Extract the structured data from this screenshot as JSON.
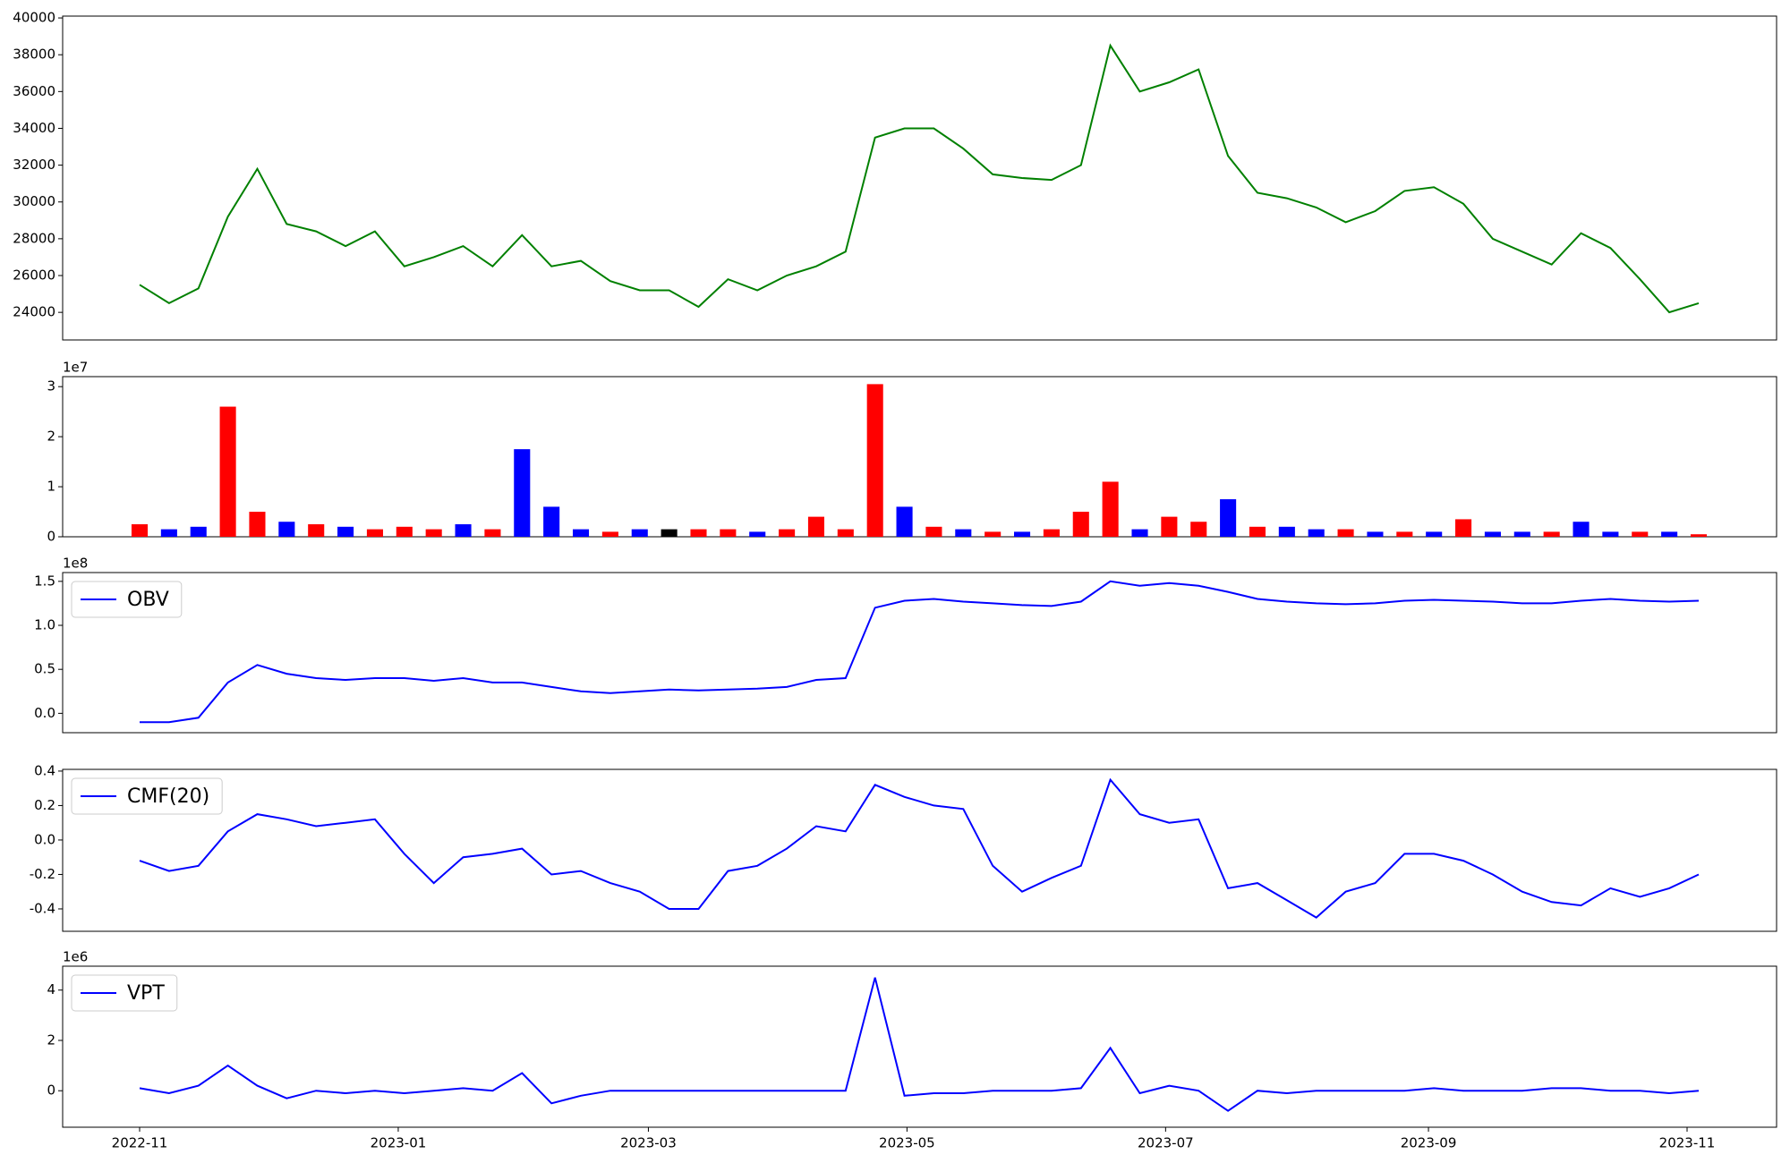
{
  "chart_data": [
    {
      "type": "line",
      "ylim": [
        22500,
        40100
      ],
      "yticks": [
        24000,
        26000,
        28000,
        30000,
        32000,
        34000,
        36000,
        38000,
        40000
      ],
      "series": [
        {
          "color": "#008000",
          "values": [
            25500,
            24500,
            25300,
            29200,
            31800,
            28800,
            28400,
            27600,
            28400,
            26500,
            27000,
            27600,
            26500,
            28200,
            26500,
            26800,
            25700,
            25200,
            25200,
            24300,
            25800,
            25200,
            26000,
            26500,
            27300,
            33500,
            34000,
            34000,
            32900,
            31500,
            31300,
            31200,
            32000,
            38500,
            36000,
            36500,
            37200,
            32500,
            30500,
            30200,
            29700,
            28900,
            29500,
            30600,
            30800,
            29900,
            28000,
            27300,
            26600,
            28300,
            27500,
            25800,
            24000,
            24500
          ]
        }
      ]
    },
    {
      "type": "bar",
      "offset_label": "1e7",
      "ylim": [
        0,
        3.2
      ],
      "yticks": [
        0,
        1,
        2,
        3
      ],
      "values": [
        0.25,
        0.15,
        0.2,
        2.6,
        0.5,
        0.3,
        0.25,
        0.2,
        0.15,
        0.2,
        0.15,
        0.25,
        0.15,
        1.75,
        0.6,
        0.15,
        0.1,
        0.15,
        0.15,
        0.15,
        0.15,
        0.1,
        0.15,
        0.4,
        0.15,
        3.05,
        0.6,
        0.2,
        0.15,
        0.1,
        0.1,
        0.15,
        0.5,
        1.1,
        0.15,
        0.4,
        0.3,
        0.75,
        0.2,
        0.2,
        0.15,
        0.15,
        0.1,
        0.1,
        0.1,
        0.35,
        0.1,
        0.1,
        0.1,
        0.3,
        0.1,
        0.1,
        0.1,
        0.05
      ],
      "colors": [
        "red",
        "blue",
        "blue",
        "red",
        "red",
        "blue",
        "red",
        "blue",
        "red",
        "red",
        "red",
        "blue",
        "red",
        "blue",
        "blue",
        "blue",
        "red",
        "blue",
        "black",
        "red",
        "red",
        "blue",
        "red",
        "red",
        "red",
        "red",
        "blue",
        "red",
        "blue",
        "red",
        "blue",
        "red",
        "red",
        "red",
        "blue",
        "red",
        "red",
        "blue",
        "red",
        "blue",
        "blue",
        "red",
        "blue",
        "red",
        "blue",
        "red",
        "blue",
        "blue",
        "red",
        "blue",
        "blue",
        "red",
        "blue",
        "red"
      ]
    },
    {
      "type": "line",
      "offset_label": "1e8",
      "ylim": [
        -0.22,
        1.6
      ],
      "yticks": [
        {
          "value": 0,
          "label": "0.0"
        },
        0.5,
        {
          "value": 1,
          "label": "1.0"
        },
        1.5
      ],
      "series": [
        {
          "name": "OBV",
          "color": "blue",
          "values": [
            -0.1,
            -0.1,
            -0.05,
            0.35,
            0.55,
            0.45,
            0.4,
            0.38,
            0.4,
            0.4,
            0.37,
            0.4,
            0.35,
            0.35,
            0.3,
            0.25,
            0.23,
            0.25,
            0.27,
            0.26,
            0.27,
            0.28,
            0.3,
            0.38,
            0.4,
            1.2,
            1.28,
            1.3,
            1.27,
            1.25,
            1.23,
            1.22,
            1.27,
            1.5,
            1.45,
            1.48,
            1.45,
            1.38,
            1.3,
            1.27,
            1.25,
            1.24,
            1.25,
            1.28,
            1.29,
            1.28,
            1.27,
            1.25,
            1.25,
            1.28,
            1.3,
            1.28,
            1.27,
            1.28
          ]
        }
      ]
    },
    {
      "type": "line",
      "ylim": [
        -0.53,
        0.41
      ],
      "yticks": [
        -0.4,
        -0.2,
        {
          "value": 0,
          "label": "0.0"
        },
        0.2,
        0.4
      ],
      "series": [
        {
          "name": "CMF(20)",
          "color": "blue",
          "values": [
            -0.12,
            -0.18,
            -0.15,
            0.05,
            0.15,
            0.12,
            0.08,
            0.1,
            0.12,
            -0.08,
            -0.25,
            -0.1,
            -0.08,
            -0.05,
            -0.2,
            -0.18,
            -0.25,
            -0.3,
            -0.4,
            -0.4,
            -0.18,
            -0.15,
            -0.05,
            0.08,
            0.05,
            0.32,
            0.25,
            0.2,
            0.18,
            -0.15,
            -0.3,
            -0.22,
            -0.15,
            0.35,
            0.15,
            0.1,
            0.12,
            -0.28,
            -0.25,
            -0.35,
            -0.45,
            -0.3,
            -0.25,
            -0.08,
            -0.08,
            -0.12,
            -0.2,
            -0.3,
            -0.36,
            -0.38,
            -0.28,
            -0.33,
            -0.28,
            -0.2
          ]
        }
      ]
    },
    {
      "type": "line",
      "offset_label": "1e6",
      "ylim": [
        -1.45,
        4.95
      ],
      "yticks": [
        0,
        2,
        4
      ],
      "xticks": [
        "2022-11",
        "2023-01",
        "2023-03",
        "2023-05",
        "2023-07",
        "2023-09",
        "2023-11"
      ],
      "series": [
        {
          "name": "VPT",
          "color": "blue",
          "values": [
            0.1,
            -0.1,
            0.2,
            1.0,
            0.2,
            -0.3,
            0,
            -0.1,
            0,
            -0.1,
            0,
            0.1,
            0,
            0.7,
            -0.5,
            -0.2,
            0,
            0,
            0,
            0,
            0,
            0,
            0,
            0,
            0,
            4.5,
            -0.2,
            -0.1,
            -0.1,
            0,
            0,
            0,
            0.1,
            1.7,
            -0.1,
            0.2,
            0,
            -0.8,
            0,
            -0.1,
            0,
            0,
            0,
            0,
            0.1,
            0,
            0,
            0,
            0.1,
            0.1,
            0,
            0,
            -0.1,
            0
          ]
        }
      ]
    }
  ]
}
